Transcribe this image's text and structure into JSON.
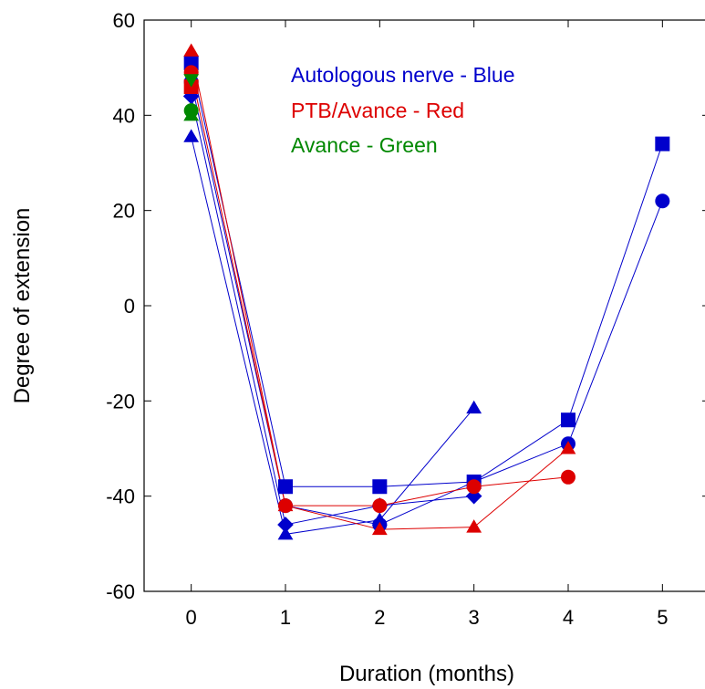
{
  "chart_data": {
    "type": "line",
    "title": "",
    "xlabel": "Duration (months)",
    "ylabel": "Degree of extension",
    "xlim": [
      -0.5,
      5.5
    ],
    "ylim": [
      -60,
      60
    ],
    "xticks": [
      0,
      1,
      2,
      3,
      4,
      5
    ],
    "yticks": [
      -60,
      -40,
      -20,
      0,
      20,
      40,
      60
    ],
    "xtick_labels": [
      "0",
      "1",
      "2",
      "3",
      "4",
      "5"
    ],
    "ytick_labels": [
      "-60",
      "-40",
      "-20",
      "0",
      "20",
      "40",
      "60"
    ],
    "grid": false,
    "legend": {
      "placement": "top-center",
      "entries": [
        {
          "text": "Autologous nerve - Blue",
          "color": "#0000cc"
        },
        {
          "text": "PTB/Avance - Red",
          "color": "#dd0000"
        },
        {
          "text": "Avance - Green",
          "color": "#008800"
        }
      ]
    },
    "series": [
      {
        "group": "blue",
        "color": "#0000cc",
        "marker": "square",
        "x": [
          0,
          1,
          2,
          3,
          4,
          5
        ],
        "y": [
          51,
          -38,
          -38,
          -37,
          -24,
          34
        ]
      },
      {
        "group": "blue",
        "color": "#0000cc",
        "marker": "circle",
        "x": [
          0,
          1,
          2,
          3,
          4,
          5
        ],
        "y": [
          47,
          -42,
          -46,
          -37,
          -29,
          22
        ]
      },
      {
        "group": "blue",
        "color": "#0000cc",
        "marker": "triangle",
        "x": [
          0,
          1,
          2,
          3
        ],
        "y": [
          35.5,
          -48,
          -45,
          -21.5
        ]
      },
      {
        "group": "blue",
        "color": "#0000cc",
        "marker": "diamond",
        "x": [
          0,
          1,
          2,
          3
        ],
        "y": [
          44,
          -46,
          -42,
          -40
        ]
      },
      {
        "group": "red",
        "color": "#dd0000",
        "marker": "triangle",
        "x": [
          0,
          1,
          2,
          3,
          4
        ],
        "y": [
          53.5,
          -42,
          -47,
          -46.5,
          -30
        ]
      },
      {
        "group": "red",
        "color": "#dd0000",
        "marker": "circle",
        "x": [
          0,
          1,
          2,
          3,
          4
        ],
        "y": [
          49,
          -42,
          -42,
          -38,
          -36
        ]
      },
      {
        "group": "red",
        "color": "#dd0000",
        "marker": "square",
        "x": [
          0
        ],
        "y": [
          46
        ]
      },
      {
        "group": "green",
        "color": "#008800",
        "marker": "triangle-down",
        "x": [
          0
        ],
        "y": [
          47.5
        ]
      },
      {
        "group": "green",
        "color": "#008800",
        "marker": "triangle",
        "x": [
          0
        ],
        "y": [
          40
        ]
      },
      {
        "group": "green",
        "color": "#008800",
        "marker": "circle",
        "x": [
          0
        ],
        "y": [
          41
        ]
      }
    ]
  }
}
